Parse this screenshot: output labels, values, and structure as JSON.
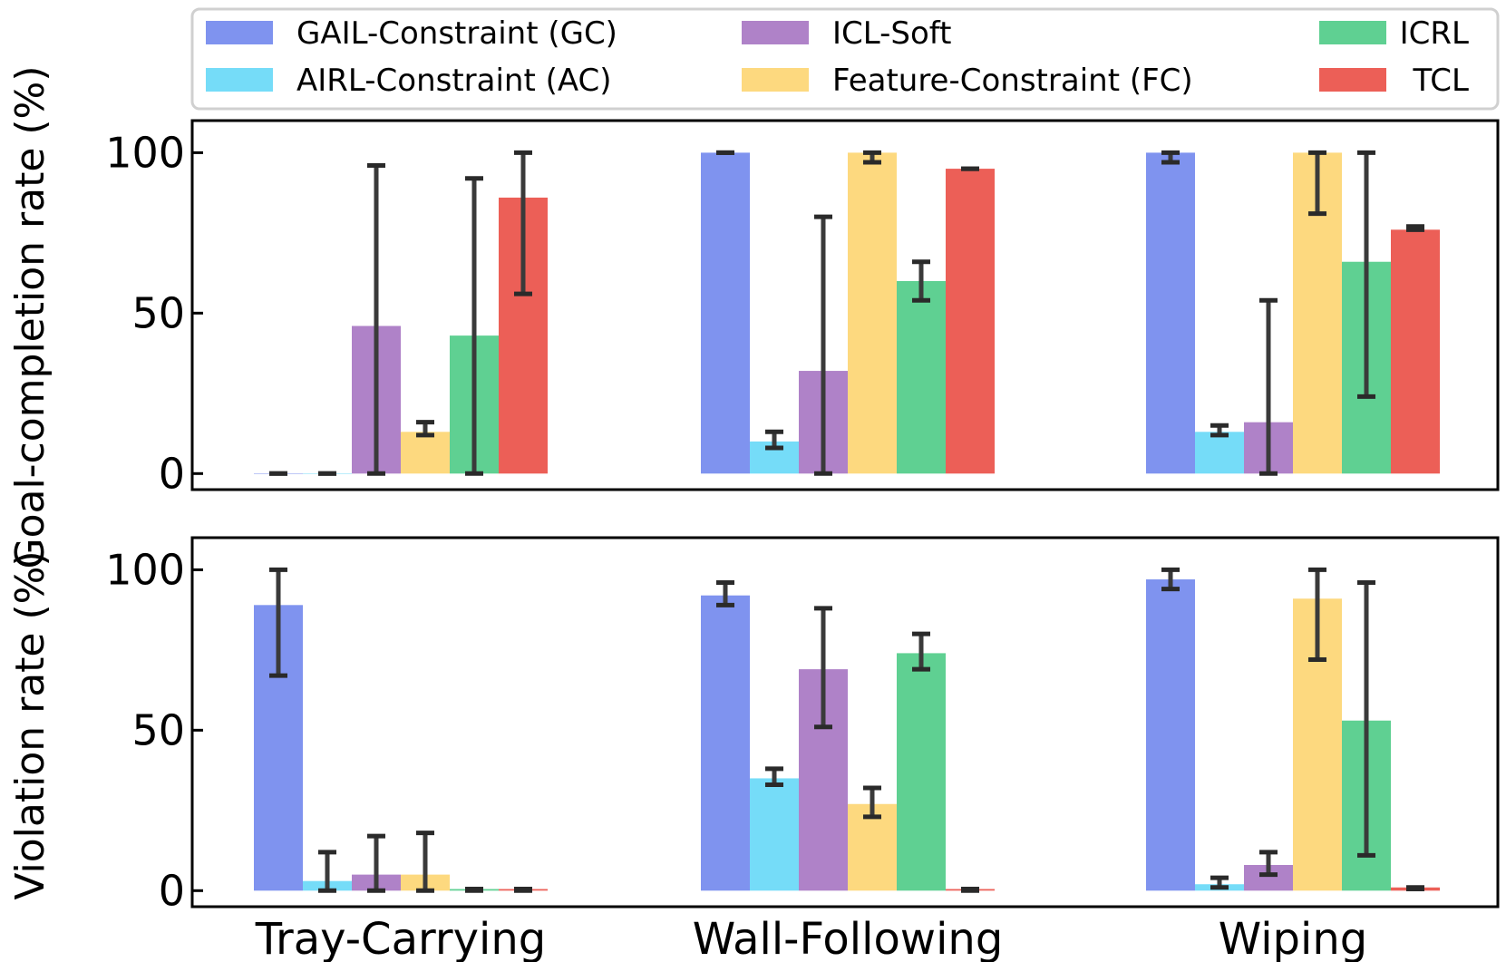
{
  "legend": [
    {
      "name": "GAIL-Constraint (GC)",
      "color": "#7f93ef"
    },
    {
      "name": "AIRL-Constraint (AC)",
      "color": "#75dcf8"
    },
    {
      "name": "ICL-Soft",
      "color": "#af82c8"
    },
    {
      "name": "Feature-Constraint (FC)",
      "color": "#fdd97f"
    },
    {
      "name": "ICRL",
      "color": "#5fd092"
    },
    {
      "name": "TCL",
      "color": "#ec5f57"
    }
  ],
  "chart_data": [
    {
      "type": "bar",
      "ylabel": "Goal-completion rate (%)",
      "ylim": [
        -5,
        110
      ],
      "yticks": [
        0,
        50,
        100
      ],
      "categories": [
        "Tray-Carrying",
        "Wall-Following",
        "Wiping"
      ],
      "series": [
        {
          "name": "GAIL-Constraint (GC)",
          "values": [
            0,
            100,
            100
          ],
          "err_low": [
            0,
            100,
            97
          ],
          "err_high": [
            0,
            100,
            100
          ]
        },
        {
          "name": "AIRL-Constraint (AC)",
          "values": [
            0,
            10,
            13
          ],
          "err_low": [
            0,
            8,
            12
          ],
          "err_high": [
            0,
            13,
            15
          ]
        },
        {
          "name": "ICL-Soft",
          "values": [
            46,
            32,
            16
          ],
          "err_low": [
            0,
            0,
            0
          ],
          "err_high": [
            96,
            80,
            54
          ]
        },
        {
          "name": "Feature-Constraint (FC)",
          "values": [
            13,
            100,
            100
          ],
          "err_low": [
            12,
            97,
            81
          ],
          "err_high": [
            16,
            100,
            100
          ]
        },
        {
          "name": "ICRL",
          "values": [
            43,
            60,
            66
          ],
          "err_low": [
            0,
            54,
            24
          ],
          "err_high": [
            92,
            66,
            100
          ]
        },
        {
          "name": "TCL",
          "values": [
            86,
            95,
            76
          ],
          "err_low": [
            56,
            95,
            76
          ],
          "err_high": [
            100,
            95,
            77
          ]
        }
      ]
    },
    {
      "type": "bar",
      "ylabel": "Violation rate (%)",
      "ylim": [
        -5,
        110
      ],
      "yticks": [
        0,
        50,
        100
      ],
      "xlabel": "",
      "categories": [
        "Tray-Carrying",
        "Wall-Following",
        "Wiping"
      ],
      "series": [
        {
          "name": "GAIL-Constraint (GC)",
          "values": [
            89,
            92,
            97
          ],
          "err_low": [
            67,
            89,
            94
          ],
          "err_high": [
            100,
            96,
            100
          ]
        },
        {
          "name": "AIRL-Constraint (AC)",
          "values": [
            3,
            35,
            2
          ],
          "err_low": [
            0,
            33,
            1
          ],
          "err_high": [
            12,
            38,
            4
          ]
        },
        {
          "name": "ICL-Soft",
          "values": [
            5,
            69,
            8
          ],
          "err_low": [
            0,
            51,
            5
          ],
          "err_high": [
            17,
            88,
            12
          ]
        },
        {
          "name": "Feature-Constraint (FC)",
          "values": [
            5,
            27,
            91
          ],
          "err_low": [
            0,
            23,
            72
          ],
          "err_high": [
            18,
            32,
            100
          ]
        },
        {
          "name": "ICRL",
          "values": [
            0.5,
            74,
            53
          ],
          "err_low": [
            0,
            69,
            11
          ],
          "err_high": [
            0.5,
            80,
            96
          ]
        },
        {
          "name": "TCL",
          "values": [
            0.5,
            0.5,
            1
          ],
          "err_low": [
            0,
            0,
            0.5
          ],
          "err_high": [
            0.5,
            0.5,
            1
          ]
        }
      ]
    }
  ]
}
